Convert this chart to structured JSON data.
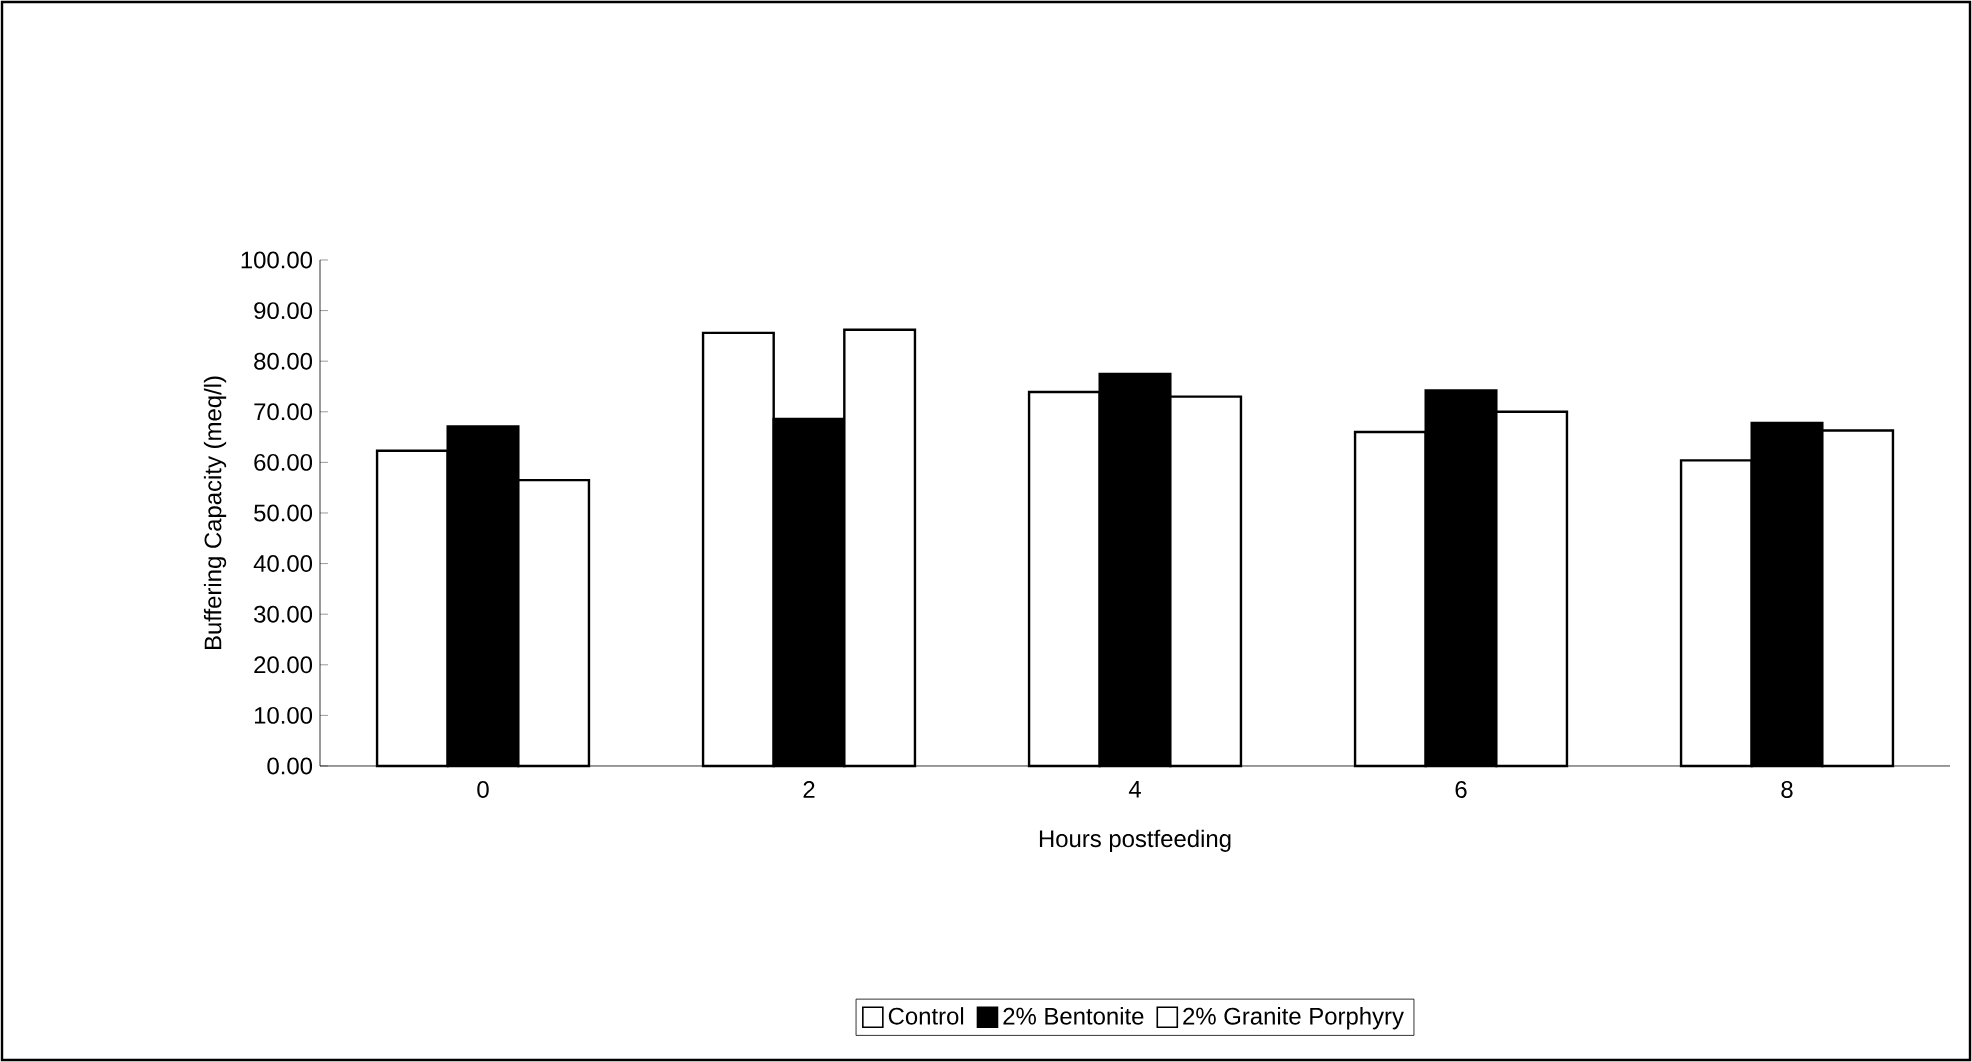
{
  "chart_data": {
    "type": "bar",
    "xlabel": "Hours postfeeding",
    "ylabel": "Buffering Capacity (meq/l)",
    "categories": [
      "0",
      "2",
      "4",
      "6",
      "8"
    ],
    "series": [
      {
        "name": "Control",
        "color": "#ffffff",
        "values": [
          62.3,
          85.6,
          73.9,
          66.0,
          60.4
        ]
      },
      {
        "name": "2% Bentonite",
        "color": "#000000",
        "values": [
          67.1,
          68.6,
          77.5,
          74.2,
          67.8
        ]
      },
      {
        "name": "2% Granite Porphyry",
        "color": "#ffffff",
        "values": [
          56.5,
          86.2,
          73.0,
          70.0,
          66.3
        ]
      }
    ],
    "ylim": [
      0,
      100
    ],
    "yticks": [
      {
        "value": 0,
        "label": "0.00"
      },
      {
        "value": 10,
        "label": "10.00"
      },
      {
        "value": 20,
        "label": "20.00"
      },
      {
        "value": 30,
        "label": "30.00"
      },
      {
        "value": 40,
        "label": "40.00"
      },
      {
        "value": 50,
        "label": "50.00"
      },
      {
        "value": 60,
        "label": "60.00"
      },
      {
        "value": 70,
        "label": "70.00"
      },
      {
        "value": 80,
        "label": "80.00"
      },
      {
        "value": 90,
        "label": "90.00"
      },
      {
        "value": 100,
        "label": "100.00"
      }
    ],
    "grid": false,
    "legend": "bottom"
  }
}
